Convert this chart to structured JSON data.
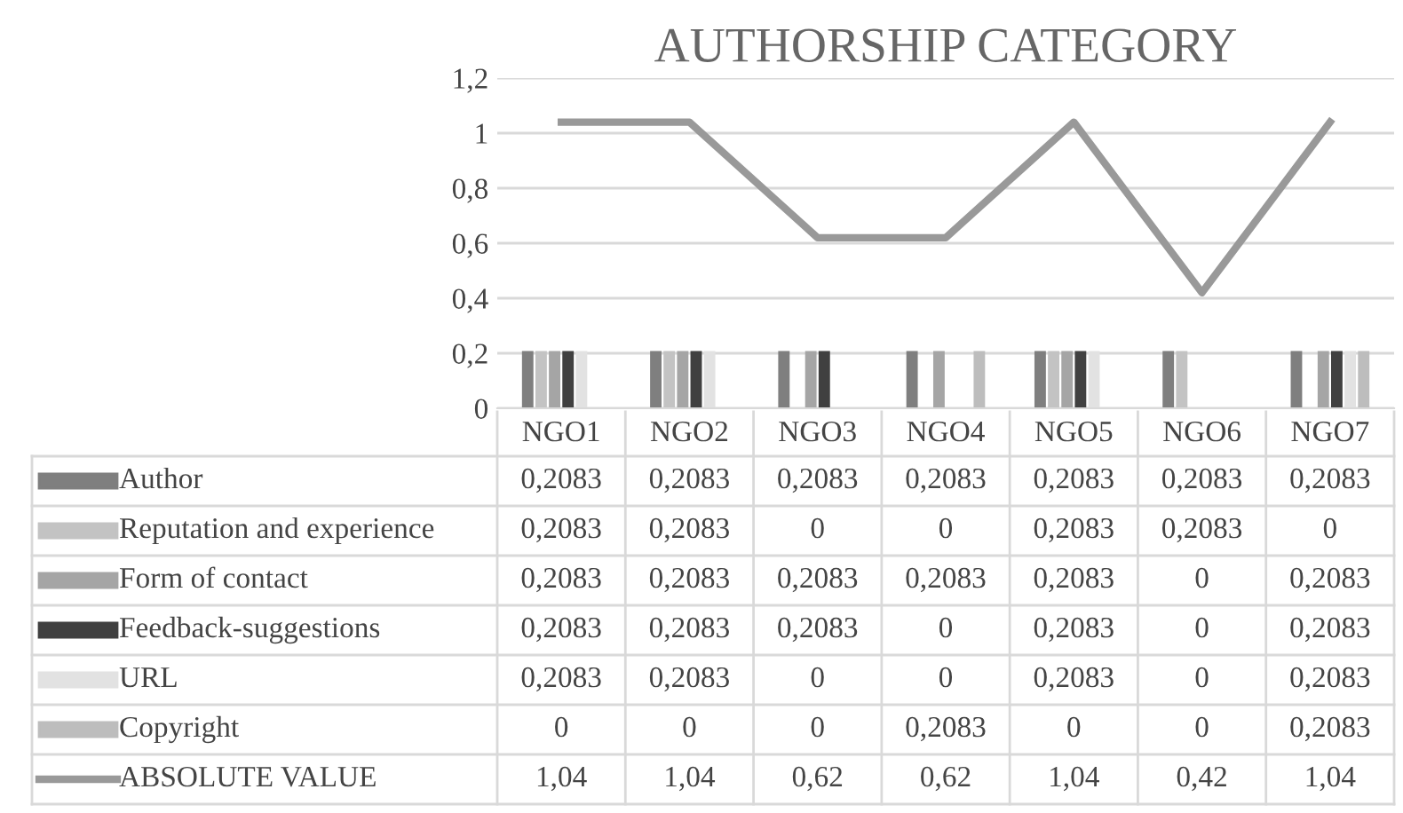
{
  "chart_data": {
    "type": "bar",
    "title": "AUTHORSHIP CATEGORY",
    "categories": [
      "NGO1",
      "NGO2",
      "NGO3",
      "NGO4",
      "NGO5",
      "NGO6",
      "NGO7"
    ],
    "series": [
      {
        "name": "Author",
        "color": "#7f7f7f",
        "values": [
          0.2083,
          0.2083,
          0.2083,
          0.2083,
          0.2083,
          0.2083,
          0.2083
        ],
        "value_labels": [
          "0,2083",
          "0,2083",
          "0,2083",
          "0,2083",
          "0,2083",
          "0,2083",
          "0,2083"
        ]
      },
      {
        "name": "Reputation and experience",
        "color": "#c3c3c3",
        "values": [
          0.2083,
          0.2083,
          0,
          0,
          0.2083,
          0.2083,
          0
        ],
        "value_labels": [
          "0,2083",
          "0,2083",
          "0",
          "0",
          "0,2083",
          "0,2083",
          "0"
        ]
      },
      {
        "name": "Form of contact",
        "color": "#a5a5a5",
        "values": [
          0.2083,
          0.2083,
          0.2083,
          0.2083,
          0.2083,
          0,
          0.2083
        ],
        "value_labels": [
          "0,2083",
          "0,2083",
          "0,2083",
          "0,2083",
          "0,2083",
          "0",
          "0,2083"
        ]
      },
      {
        "name": "Feedback-suggestions",
        "color": "#404040",
        "values": [
          0.2083,
          0.2083,
          0.2083,
          0,
          0.2083,
          0,
          0.2083
        ],
        "value_labels": [
          "0,2083",
          "0,2083",
          "0,2083",
          "0",
          "0,2083",
          "0",
          "0,2083"
        ]
      },
      {
        "name": "URL",
        "color": "#e2e2e2",
        "values": [
          0.2083,
          0.2083,
          0,
          0,
          0.2083,
          0,
          0.2083
        ],
        "value_labels": [
          "0,2083",
          "0,2083",
          "0",
          "0",
          "0,2083",
          "0",
          "0,2083"
        ]
      },
      {
        "name": "Copyright",
        "color": "#bdbdbd",
        "values": [
          0,
          0,
          0,
          0.2083,
          0,
          0,
          0.2083
        ],
        "value_labels": [
          "0",
          "0",
          "0",
          "0,2083",
          "0",
          "0",
          "0,2083"
        ]
      },
      {
        "name": "ABSOLUTE VALUE",
        "type": "line",
        "color": "#999999",
        "values": [
          1.04,
          1.04,
          0.62,
          0.62,
          1.04,
          0.42,
          1.04
        ],
        "value_labels": [
          "1,04",
          "1,04",
          "0,62",
          "0,62",
          "1,04",
          "0,42",
          "1,04"
        ]
      }
    ],
    "ylim": [
      0,
      1.2
    ],
    "yticks": [
      {
        "value": 0,
        "label": "0"
      },
      {
        "value": 0.2,
        "label": "0,2"
      },
      {
        "value": 0.4,
        "label": "0,4"
      },
      {
        "value": 0.6,
        "label": "0,6"
      },
      {
        "value": 0.8,
        "label": "0,8"
      },
      {
        "value": 1,
        "label": "1"
      },
      {
        "value": 1.2,
        "label": "1,2"
      }
    ],
    "grid": "y",
    "legend": "bottom",
    "line_style": "solid",
    "marker": "none"
  }
}
